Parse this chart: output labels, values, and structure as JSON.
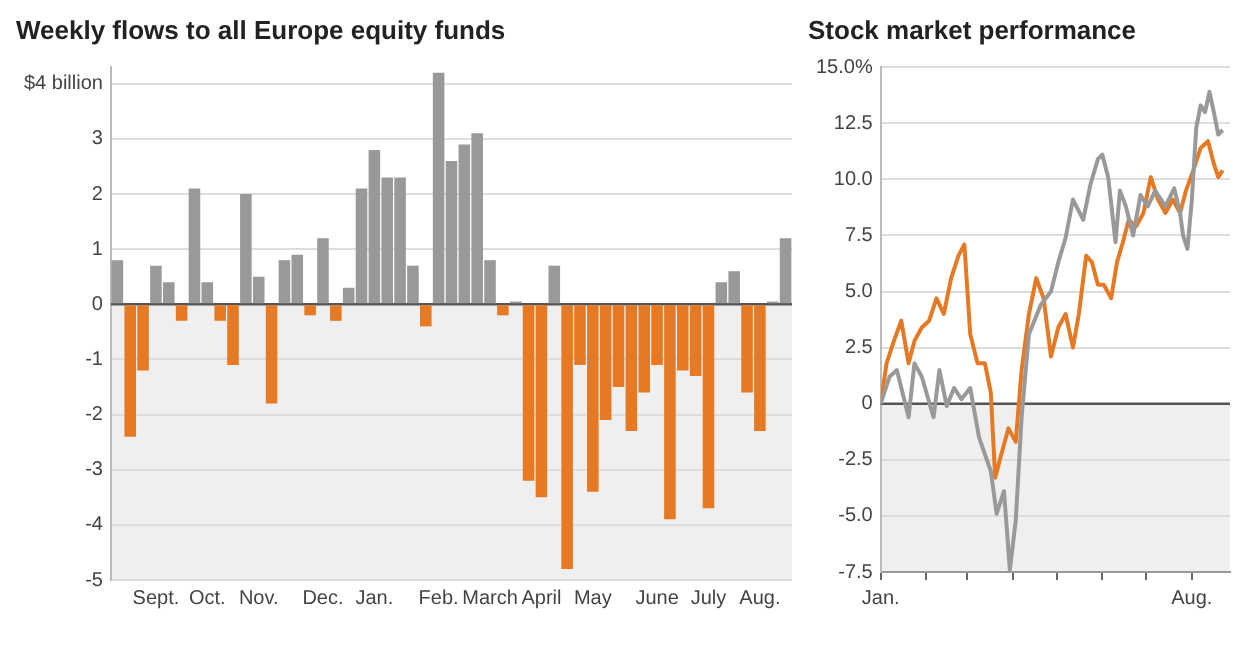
{
  "chart_data": [
    {
      "type": "bar",
      "title": "Weekly flows to all Europe equity funds",
      "categories": [
        null,
        null,
        null,
        "Sept.",
        null,
        null,
        null,
        "Oct.",
        null,
        null,
        null,
        "Nov.",
        null,
        null,
        null,
        null,
        "Dec.",
        null,
        null,
        null,
        "Jan.",
        null,
        null,
        null,
        null,
        "Feb.",
        null,
        null,
        null,
        "March",
        null,
        null,
        null,
        "April",
        null,
        null,
        null,
        "May",
        null,
        null,
        null,
        null,
        "June",
        null,
        null,
        null,
        "July",
        null,
        null,
        null,
        "Aug.",
        null,
        null
      ],
      "values": [
        0.8,
        -2.4,
        -1.2,
        0.7,
        0.4,
        -0.3,
        2.1,
        0.4,
        -0.3,
        -1.1,
        2.0,
        0.5,
        -1.8,
        0.8,
        0.9,
        -0.2,
        1.2,
        -0.3,
        0.3,
        2.1,
        2.8,
        2.3,
        2.3,
        0.7,
        -0.4,
        4.2,
        2.6,
        2.9,
        3.1,
        0.8,
        -0.2,
        0.05,
        -3.2,
        -3.5,
        0.7,
        -4.8,
        -1.1,
        -3.4,
        -2.1,
        -1.5,
        -2.3,
        -1.6,
        -1.1,
        -3.9,
        -1.2,
        -1.3,
        -3.7,
        0.4,
        0.6,
        -1.6,
        -2.3,
        0.05,
        1.2
      ],
      "colors": [
        "#999999",
        "#e67a24",
        "#e67a24",
        "#999999",
        "#999999",
        "#e67a24",
        "#999999",
        "#999999",
        "#e67a24",
        "#e67a24",
        "#999999",
        "#999999",
        "#e67a24",
        "#999999",
        "#999999",
        "#e67a24",
        "#999999",
        "#e67a24",
        "#999999",
        "#999999",
        "#999999",
        "#999999",
        "#999999",
        "#999999",
        "#e67a24",
        "#999999",
        "#999999",
        "#999999",
        "#999999",
        "#999999",
        "#e67a24",
        "#999999",
        "#e67a24",
        "#e67a24",
        "#999999",
        "#e67a24",
        "#e67a24",
        "#e67a24",
        "#e67a24",
        "#e67a24",
        "#e67a24",
        "#e67a24",
        "#e67a24",
        "#e67a24",
        "#e67a24",
        "#e67a24",
        "#e67a24",
        "#999999",
        "#999999",
        "#e67a24",
        "#e67a24",
        "#999999",
        "#999999"
      ],
      "ylim": [
        -5,
        4.3
      ],
      "yticks": [
        -5,
        -4,
        -3,
        -2,
        -1,
        0,
        1,
        2,
        3,
        {
          "value": 4,
          "label": "$4 billion"
        }
      ],
      "grid": "y",
      "legend": false,
      "bands": [
        {
          "axis": "y",
          "from": -5,
          "to": 0,
          "color": "#efefef"
        }
      ],
      "ref_lines": [
        {
          "axis": "y",
          "value": 0,
          "color": "#555555"
        }
      ]
    },
    {
      "type": "line",
      "title": "Stock market performance",
      "series": [
        {
          "color": "#999999",
          "x": [
            "--01-01",
            "--01-07",
            "--01-12",
            "--01-20",
            "--01-24",
            "--01-29",
            "--02-06",
            "--02-10",
            "--02-15",
            "--02-20",
            "--02-25",
            "--03-03",
            "--03-09",
            "--03-17",
            "--03-21",
            "--03-26",
            "--03-30",
            "--04-03",
            "--04-07",
            "--04-12",
            "--04-20",
            "--04-27",
            "--05-02",
            "--05-07",
            "--05-12",
            "--05-19",
            "--05-24",
            "--05-29",
            "--06-01",
            "--06-05",
            "--06-10",
            "--06-13",
            "--06-17",
            "--06-22",
            "--06-27",
            "--07-02",
            "--07-07",
            "--07-14",
            "--07-20",
            "--07-24",
            "--07-26",
            "--07-29",
            "--08-01",
            "--08-04",
            "--08-07",
            "--08-10",
            "--08-13",
            "--08-16",
            "--08-19",
            "--08-22"
          ],
          "values": [
            0,
            1.2,
            1.5,
            -0.6,
            1.8,
            1.2,
            -0.6,
            1.5,
            -0.1,
            0.7,
            0.2,
            0.7,
            -1.5,
            -3.0,
            -4.9,
            -3.9,
            -7.4,
            -5.2,
            -0.6,
            3.1,
            4.4,
            5.0,
            6.3,
            7.4,
            9.1,
            8.2,
            9.8,
            10.9,
            11.1,
            10.1,
            7.2,
            9.5,
            8.8,
            7.5,
            9.3,
            8.8,
            9.5,
            8.8,
            9.6,
            8.5,
            7.5,
            6.9,
            9.1,
            12.3,
            13.3,
            13.0,
            13.9,
            13.0,
            12.0,
            12.2
          ]
        },
        {
          "color": "#e67a24",
          "x": [
            "--01-01",
            "--01-05",
            "--01-10",
            "--01-15",
            "--01-20",
            "--01-24",
            "--01-29",
            "--02-03",
            "--02-08",
            "--02-13",
            "--02-18",
            "--02-23",
            "--02-27",
            "--03-03",
            "--03-08",
            "--03-13",
            "--03-17",
            "--03-20",
            "--03-24",
            "--03-29",
            "--04-03",
            "--04-07",
            "--04-12",
            "--04-17",
            "--04-22",
            "--04-27",
            "--05-02",
            "--05-07",
            "--05-12",
            "--05-16",
            "--05-21",
            "--05-25",
            "--05-29",
            "--06-02",
            "--06-07",
            "--06-11",
            "--06-15",
            "--06-19",
            "--06-24",
            "--06-29",
            "--07-04",
            "--07-09",
            "--07-14",
            "--07-19",
            "--07-24",
            "--07-28",
            "--08-02",
            "--08-07",
            "--08-12",
            "--08-16",
            "--08-19",
            "--08-22"
          ],
          "values": [
            0,
            1.8,
            2.8,
            3.7,
            1.8,
            2.8,
            3.4,
            3.7,
            4.7,
            4.0,
            5.6,
            6.6,
            7.1,
            3.1,
            1.8,
            1.8,
            0.5,
            -3.3,
            -2.3,
            -1.1,
            -1.7,
            1.5,
            4.0,
            5.6,
            4.7,
            2.1,
            3.4,
            4.0,
            2.5,
            4.0,
            6.6,
            6.3,
            5.3,
            5.3,
            4.7,
            6.3,
            7.2,
            8.2,
            7.9,
            8.5,
            10.1,
            9.1,
            8.5,
            9.1,
            8.5,
            9.5,
            10.4,
            11.4,
            11.7,
            10.7,
            10.1,
            10.4
          ]
        }
      ],
      "xlim": [
        "--01-01",
        "--08-27"
      ],
      "xticks": [
        {
          "value": "--01-01",
          "label": "Jan."
        },
        {
          "value": "--02-01",
          "label": null
        },
        {
          "value": "--03-01",
          "label": null
        },
        {
          "value": "--04-01",
          "label": null
        },
        {
          "value": "--05-01",
          "label": null
        },
        {
          "value": "--06-01",
          "label": null
        },
        {
          "value": "--07-01",
          "label": null
        },
        {
          "value": "--08-01",
          "label": "Aug."
        }
      ],
      "ylim": [
        -7.5,
        15
      ],
      "yticks": [
        {
          "value": -7.5,
          "label": "-7.5"
        },
        {
          "value": -5,
          "label": "-5.0"
        },
        {
          "value": -2.5,
          "label": "-2.5"
        },
        {
          "value": 0,
          "label": "0"
        },
        {
          "value": 2.5,
          "label": "2.5"
        },
        {
          "value": 5,
          "label": "5.0"
        },
        {
          "value": 7.5,
          "label": "7.5"
        },
        {
          "value": 10,
          "label": "10.0"
        },
        {
          "value": 12.5,
          "label": "12.5"
        },
        {
          "value": 15,
          "label": "15.0%"
        }
      ],
      "grid": "y",
      "legend": false,
      "marker": "none",
      "bands": [
        {
          "axis": "y",
          "from": -7.5,
          "to": 0,
          "color": "#efefef"
        }
      ],
      "ref_lines": [
        {
          "axis": "y",
          "value": 0,
          "color": "#555555"
        }
      ]
    }
  ]
}
